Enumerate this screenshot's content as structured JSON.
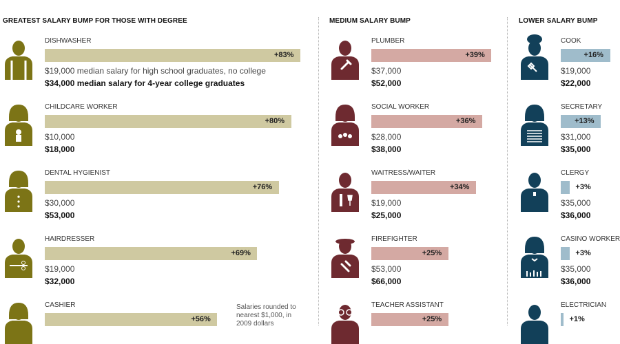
{
  "colors": {
    "greatest_bar": "#cfc9a1",
    "greatest_icon": "#7c7416",
    "medium_bar": "#d4a9a3",
    "medium_icon": "#6e2a30",
    "lower_bar": "#9fbccb",
    "lower_icon": "#124059"
  },
  "note": "Salaries rounded to nearest $1,000, in 2009 dollars",
  "chart_data": [
    {
      "type": "bar",
      "title": "GREATEST SALARY BUMP FOR THOSE WITH DEGREE",
      "categories": [
        "DISHWASHER",
        "CHILDCARE WORKER",
        "DENTAL HYGIENIST",
        "HAIRDRESSER",
        "CASHIER"
      ],
      "values": [
        83,
        80,
        76,
        69,
        56
      ],
      "value_labels": [
        "+83%",
        "+80%",
        "+76%",
        "+69%",
        "+56%"
      ],
      "high_school_salary": [
        "$19,000 median salary for high school graduates, no college",
        "$10,000",
        "$30,000",
        "$19,000",
        ""
      ],
      "college_salary": [
        "$34,000 median salary for 4-year college graduates",
        "$18,000",
        "$53,000",
        "$32,000",
        ""
      ],
      "icons": [
        "dishwasher-icon",
        "childcare-worker-icon",
        "dental-hygienist-icon",
        "hairdresser-icon",
        "cashier-icon"
      ]
    },
    {
      "type": "bar",
      "title": "MEDIUM SALARY BUMP",
      "categories": [
        "PLUMBER",
        "SOCIAL WORKER",
        "WAITRESS/WAITER",
        "FIREFIGHTER",
        "TEACHER ASSISTANT"
      ],
      "values": [
        39,
        36,
        34,
        25,
        25
      ],
      "value_labels": [
        "+39%",
        "+36%",
        "+34%",
        "+25%",
        "+25%"
      ],
      "high_school_salary": [
        "$37,000",
        "$28,000",
        "$19,000",
        "$53,000",
        ""
      ],
      "college_salary": [
        "$52,000",
        "$38,000",
        "$25,000",
        "$66,000",
        ""
      ],
      "icons": [
        "plumber-icon",
        "social-worker-icon",
        "waiter-icon",
        "firefighter-icon",
        "teacher-assistant-icon"
      ]
    },
    {
      "type": "bar",
      "title": "LOWER SALARY BUMP",
      "categories": [
        "COOK",
        "SECRETARY",
        "CLERGY",
        "CASINO WORKER",
        "ELECTRICIAN"
      ],
      "values": [
        16,
        13,
        3,
        3,
        1
      ],
      "value_labels": [
        "+16%",
        "+13%",
        "+3%",
        "+3%",
        "+1%"
      ],
      "high_school_salary": [
        "$19,000",
        "$31,000",
        "$35,000",
        "$35,000",
        ""
      ],
      "college_salary": [
        "$22,000",
        "$35,000",
        "$36,000",
        "$36,000",
        ""
      ],
      "icons": [
        "cook-icon",
        "secretary-icon",
        "clergy-icon",
        "casino-worker-icon",
        "electrician-icon"
      ]
    }
  ]
}
